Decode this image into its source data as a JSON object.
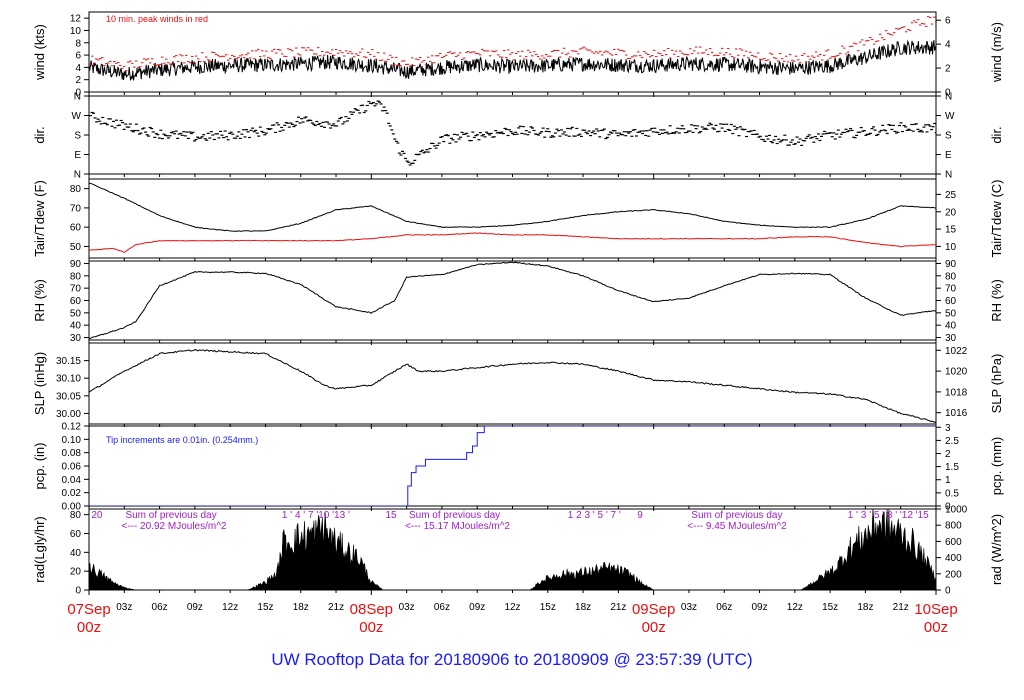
{
  "title": "UW Rooftop Data for 20180906  to  20180909 @ 23:57:39  (UTC)",
  "colors": {
    "title": "#1a1aff",
    "date": "#e81010",
    "red": "#e81010",
    "blue": "#1a1aff",
    "purple": "#a020c8",
    "black": "#000000"
  },
  "x_axis": {
    "range_hours": [
      0,
      72
    ],
    "minor_ticks": [
      {
        "hour": 3,
        "label": "03z"
      },
      {
        "hour": 6,
        "label": "06z"
      },
      {
        "hour": 9,
        "label": "09z"
      },
      {
        "hour": 12,
        "label": "12z"
      },
      {
        "hour": 15,
        "label": "15z"
      },
      {
        "hour": 18,
        "label": "18z"
      },
      {
        "hour": 21,
        "label": "21z"
      },
      {
        "hour": 27,
        "label": "03z"
      },
      {
        "hour": 30,
        "label": "06z"
      },
      {
        "hour": 33,
        "label": "09z"
      },
      {
        "hour": 36,
        "label": "12z"
      },
      {
        "hour": 39,
        "label": "15z"
      },
      {
        "hour": 42,
        "label": "18z"
      },
      {
        "hour": 45,
        "label": "21z"
      },
      {
        "hour": 51,
        "label": "03z"
      },
      {
        "hour": 54,
        "label": "06z"
      },
      {
        "hour": 57,
        "label": "09z"
      },
      {
        "hour": 60,
        "label": "12z"
      },
      {
        "hour": 63,
        "label": "15z"
      },
      {
        "hour": 66,
        "label": "18z"
      },
      {
        "hour": 69,
        "label": "21z"
      }
    ],
    "date_ticks": [
      {
        "hour": 0,
        "date": "07Sep",
        "time": "00z"
      },
      {
        "hour": 24,
        "date": "08Sep",
        "time": "00z"
      },
      {
        "hour": 48,
        "date": "09Sep",
        "time": "00z"
      },
      {
        "hour": 72,
        "date": "10Sep",
        "time": "00z"
      }
    ]
  },
  "chart_data": [
    {
      "id": "wind",
      "type": "line",
      "ylabel": "wind (kts)",
      "y2label": "wind (m/s)",
      "ylim": [
        0,
        13
      ],
      "yticks": [
        0,
        2,
        4,
        6,
        8,
        10,
        12
      ],
      "y2ticks": [
        {
          "label": "0",
          "at": 0
        },
        {
          "label": "2",
          "at": 3.89
        },
        {
          "label": "4",
          "at": 7.78
        },
        {
          "label": "6",
          "at": 11.66
        }
      ],
      "annotation": "10 min. peak winds in red",
      "series": [
        {
          "name": "wind speed",
          "color": "#000000",
          "x": [
            0,
            3,
            6,
            9,
            12,
            15,
            18,
            21,
            24,
            27,
            30,
            33,
            36,
            39,
            42,
            45,
            48,
            51,
            54,
            57,
            60,
            63,
            66,
            69,
            72
          ],
          "values": [
            4,
            2.9,
            3.6,
            4.1,
            4.3,
            4.4,
            4.6,
            4.9,
            4.3,
            3.3,
            4,
            4.4,
            4.1,
            4.3,
            4.6,
            4.4,
            4.3,
            4.6,
            4.5,
            4.1,
            3.8,
            4.3,
            5.6,
            7.2,
            7.3
          ]
        },
        {
          "name": "peak winds",
          "color": "#e81010",
          "x": [
            0,
            3,
            6,
            9,
            12,
            15,
            18,
            21,
            24,
            27,
            30,
            33,
            36,
            39,
            42,
            45,
            48,
            51,
            54,
            57,
            60,
            63,
            66,
            69,
            72
          ],
          "values": [
            5.2,
            4.2,
            5.2,
            5.6,
            6,
            6.2,
            6.4,
            6.6,
            6.1,
            4.6,
            5.8,
            6.3,
            6,
            6.2,
            6.5,
            6.3,
            6.1,
            6.6,
            6.5,
            5.9,
            5.4,
            6.2,
            7.9,
            10.2,
            12
          ]
        }
      ]
    },
    {
      "id": "dir",
      "type": "scatter",
      "ylabel": "dir.",
      "y2label": "dir.",
      "ylim": [
        0,
        360
      ],
      "yticks": [
        {
          "label": "N",
          "at": 0
        },
        {
          "label": "E",
          "at": 90
        },
        {
          "label": "S",
          "at": 180
        },
        {
          "label": "W",
          "at": 270
        },
        {
          "label": "N",
          "at": 360
        }
      ],
      "series": [
        {
          "name": "wind direction",
          "color": "#000000",
          "x": [
            0,
            3,
            6,
            9,
            12,
            15,
            18,
            21,
            24,
            25,
            26,
            27,
            30,
            33,
            36,
            39,
            42,
            45,
            48,
            51,
            54,
            57,
            60,
            63,
            66,
            69,
            72
          ],
          "values": [
            265,
            220,
            185,
            170,
            180,
            200,
            250,
            230,
            330,
            300,
            140,
            50,
            160,
            180,
            200,
            190,
            195,
            180,
            200,
            210,
            215,
            170,
            150,
            180,
            195,
            215,
            210
          ]
        }
      ]
    },
    {
      "id": "temp",
      "type": "line",
      "ylabel": "Tair/Tdew (F)",
      "y2label": "Tair/Tdew (C)",
      "ylim": [
        44,
        85
      ],
      "yticks": [
        50,
        60,
        70,
        80
      ],
      "y2ticks": [
        {
          "label": "10",
          "at": 50
        },
        {
          "label": "15",
          "at": 59
        },
        {
          "label": "20",
          "at": 68
        },
        {
          "label": "25",
          "at": 77
        }
      ],
      "series": [
        {
          "name": "Tair",
          "color": "#000000",
          "x": [
            0,
            3,
            6,
            9,
            12,
            15,
            18,
            21,
            24,
            27,
            30,
            33,
            36,
            39,
            42,
            45,
            48,
            51,
            54,
            57,
            60,
            63,
            66,
            69,
            72
          ],
          "values": [
            83,
            75,
            66,
            60,
            58,
            58,
            62,
            69,
            71,
            63,
            60,
            60,
            61,
            63,
            66,
            68,
            69,
            67,
            63,
            61,
            60,
            60,
            64,
            71,
            70
          ]
        },
        {
          "name": "Tdew",
          "color": "#e81010",
          "x": [
            0,
            2,
            3,
            4,
            6,
            9,
            12,
            15,
            18,
            21,
            24,
            27,
            30,
            33,
            36,
            39,
            42,
            45,
            48,
            51,
            54,
            57,
            60,
            63,
            66,
            69,
            72
          ],
          "values": [
            48,
            49,
            47,
            51,
            53,
            53,
            53,
            53,
            53,
            53,
            54,
            56,
            56,
            57,
            56,
            56,
            55,
            54,
            54,
            54,
            54,
            54,
            55,
            55,
            52,
            50,
            51
          ]
        }
      ]
    },
    {
      "id": "rh",
      "type": "line",
      "ylabel": "RH (%)",
      "y2label": "RH (%)",
      "ylim": [
        28,
        92
      ],
      "yticks": [
        30,
        40,
        50,
        60,
        70,
        80,
        90
      ],
      "y2ticks_same": true,
      "series": [
        {
          "name": "RH",
          "color": "#000000",
          "x": [
            0,
            3,
            4,
            6,
            9,
            12,
            15,
            18,
            21,
            24,
            26,
            27,
            30,
            33,
            36,
            39,
            42,
            45,
            48,
            51,
            54,
            57,
            60,
            63,
            66,
            69,
            72
          ],
          "values": [
            29,
            38,
            43,
            72,
            83,
            83,
            82,
            73,
            55,
            50,
            60,
            79,
            81,
            89,
            91,
            88,
            80,
            68,
            59,
            62,
            72,
            81,
            82,
            81,
            62,
            48,
            52
          ]
        }
      ]
    },
    {
      "id": "slp",
      "type": "line",
      "ylabel": "SLP (inHg)",
      "y2label": "SLP (hPa)",
      "ylim": [
        29.97,
        30.2
      ],
      "yticks": [
        30.0,
        30.05,
        30.1,
        30.15
      ],
      "y2ticks": [
        {
          "label": "1016",
          "at": 30.0021
        },
        {
          "label": "1018",
          "at": 30.0611
        },
        {
          "label": "1020",
          "at": 30.1202
        },
        {
          "label": "1022",
          "at": 30.1793
        }
      ],
      "series": [
        {
          "name": "SLP",
          "color": "#000000",
          "x": [
            0,
            3,
            6,
            9,
            12,
            15,
            18,
            20,
            21,
            24,
            27,
            28,
            30,
            33,
            36,
            39,
            42,
            45,
            48,
            51,
            54,
            57,
            60,
            63,
            66,
            69,
            72
          ],
          "values": [
            30.06,
            30.12,
            30.17,
            30.18,
            30.175,
            30.17,
            30.12,
            30.08,
            30.07,
            30.08,
            30.14,
            30.12,
            30.12,
            30.13,
            30.14,
            30.145,
            30.14,
            30.12,
            30.095,
            30.09,
            30.08,
            30.07,
            30.06,
            30.055,
            30.04,
            30.0,
            29.975
          ]
        }
      ]
    },
    {
      "id": "pcp",
      "type": "line",
      "ylabel": "pcp. (in)",
      "y2label": "pcp. (mm)",
      "ylim": [
        0,
        0.12
      ],
      "yticks": [
        0.0,
        0.02,
        0.04,
        0.06,
        0.08,
        0.1,
        0.12
      ],
      "y2ticks": [
        {
          "label": "0",
          "at": 0
        },
        {
          "label": "0.5",
          "at": 0.0197
        },
        {
          "label": "1",
          "at": 0.0394
        },
        {
          "label": "1.5",
          "at": 0.0591
        },
        {
          "label": "2",
          "at": 0.0787
        },
        {
          "label": "2.5",
          "at": 0.0984
        },
        {
          "label": "3",
          "at": 0.1181
        }
      ],
      "annotation": "Tip increments are 0.01in. (0.254mm.)",
      "series": [
        {
          "name": "cumulative precipitation",
          "color": "#1a1aff",
          "step": true,
          "x": [
            0,
            27.1,
            27.4,
            27.8,
            28.6,
            32.1,
            32.6,
            33.0,
            33.6,
            72
          ],
          "values": [
            0,
            0.03,
            0.05,
            0.06,
            0.07,
            0.08,
            0.09,
            0.11,
            0.12,
            0.12
          ]
        }
      ]
    },
    {
      "id": "rad",
      "type": "area",
      "ylabel": "rad(Lgly/hr)",
      "y2label": "rad (W/m^2)",
      "ylim": [
        0,
        86
      ],
      "yticks": [
        0,
        20,
        40,
        60,
        80
      ],
      "y2ticks": [
        {
          "label": "0",
          "at": 0
        },
        {
          "label": "200",
          "at": 17.2
        },
        {
          "label": "400",
          "at": 34.4
        },
        {
          "label": "600",
          "at": 51.6
        },
        {
          "label": "800",
          "at": 68.8
        },
        {
          "label": "1000",
          "at": 86
        }
      ],
      "series": [
        {
          "name": "solar radiation",
          "color": "#000000",
          "x": [
            0,
            1,
            2,
            3,
            4,
            13.5,
            15,
            16,
            16.5,
            18,
            19,
            20,
            21,
            22,
            23,
            24,
            25,
            37.5,
            38.5,
            40,
            42,
            44,
            45,
            46,
            47,
            48,
            60.5,
            62,
            63.5,
            64.5,
            66,
            67,
            68,
            69,
            70,
            71,
            72
          ],
          "values": [
            30,
            20,
            10,
            3,
            0,
            0,
            10,
            22,
            60,
            68,
            72,
            80,
            60,
            50,
            40,
            10,
            0,
            0,
            12,
            20,
            22,
            28,
            25,
            20,
            8,
            0,
            0,
            14,
            28,
            50,
            70,
            85,
            80,
            72,
            60,
            40,
            15
          ]
        }
      ],
      "sun_labels": [
        {
          "hour": 0.2,
          "text": "20"
        },
        {
          "hour": 16.4,
          "text": "1 ' 4 ' 7 '10 '13 '"
        },
        {
          "hour": 25.2,
          "text": "15"
        },
        {
          "hour": 40.7,
          "text": "1  2  3 ' 5 ' 7 '"
        },
        {
          "hour": 46.6,
          "text": "9"
        },
        {
          "hour": 64.5,
          "text": "1 ' 3 ' 5 ' 8 ' '12 '15"
        }
      ],
      "sum_labels": [
        {
          "hour": 3.1,
          "line1": "Sum of previous day",
          "line2": "<--- 20.92 MJoules/m^2"
        },
        {
          "hour": 27.2,
          "line1": "Sum of previous day",
          "line2": "<--- 15.17 MJoules/m^2"
        },
        {
          "hour": 51.2,
          "line1": "Sum of previous day",
          "line2": "<---  9.45 MJoules/m^2"
        }
      ]
    }
  ]
}
